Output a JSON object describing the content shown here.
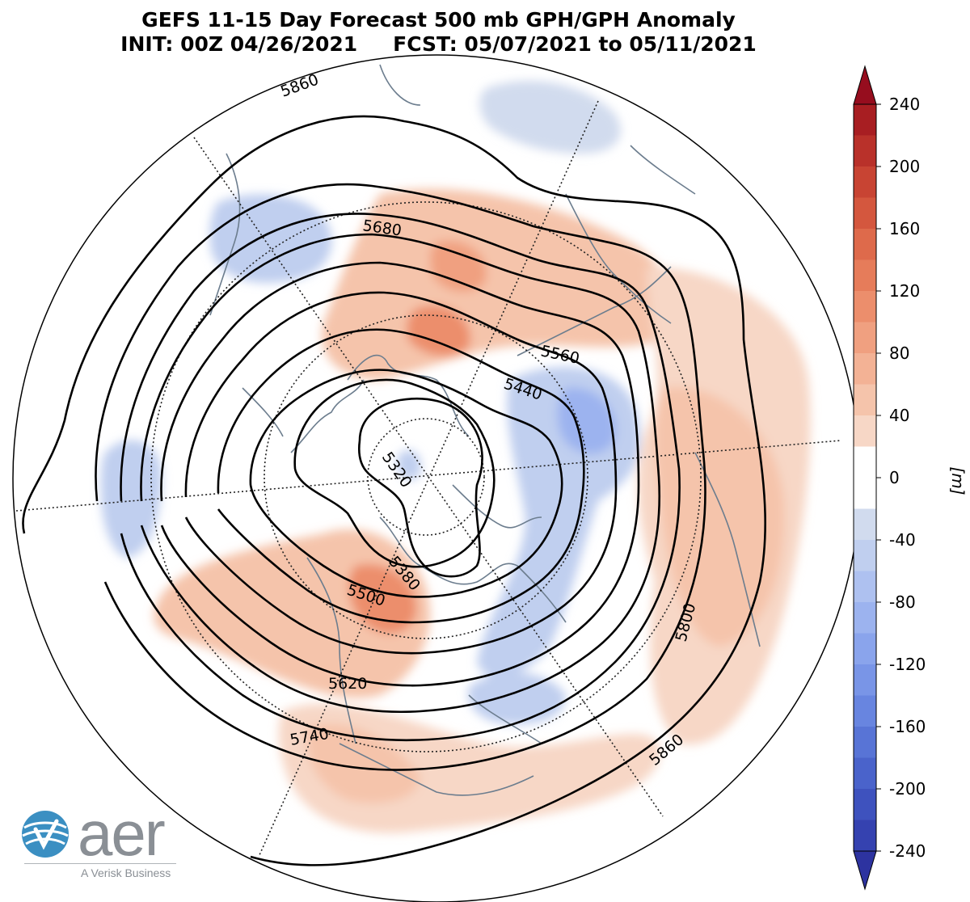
{
  "title": {
    "line1": "GEFS 11-15 Day Forecast 500 mb GPH/GPH Anomaly",
    "init": "INIT: 00Z 04/26/2021",
    "fcst": "FCST: 05/07/2021 to 05/11/2021"
  },
  "colorbar": {
    "unit_label": "[m]",
    "ticks": [
      "240",
      "200",
      "160",
      "120",
      "80",
      "40",
      "0",
      "-40",
      "-80",
      "-120",
      "-160",
      "-200",
      "-240"
    ],
    "min": -240,
    "max": 240,
    "colors_positive": [
      "#f7d7c6",
      "#f5c4ab",
      "#f3b295",
      "#f0a080",
      "#ec8e6c",
      "#e67c5a",
      "#de6a4b",
      "#d4573e",
      "#c84433",
      "#b9312a",
      "#a81e22",
      "#960d1e"
    ],
    "colors_negative": [
      "#d1dbee",
      "#c0cfef",
      "#aec1f0",
      "#9cb3ef",
      "#8aa4ec",
      "#7995e7",
      "#6885e0",
      "#5874d6",
      "#4a63cb",
      "#3e52be",
      "#3542b0",
      "#2d33a0"
    ]
  },
  "contour_labels": [
    "5860",
    "5680",
    "5560",
    "5440",
    "5320",
    "5380",
    "5500",
    "5620",
    "5740",
    "5800",
    "5860"
  ],
  "logo": {
    "wordmark": "aer",
    "tagline": "A Verisk Business"
  }
}
